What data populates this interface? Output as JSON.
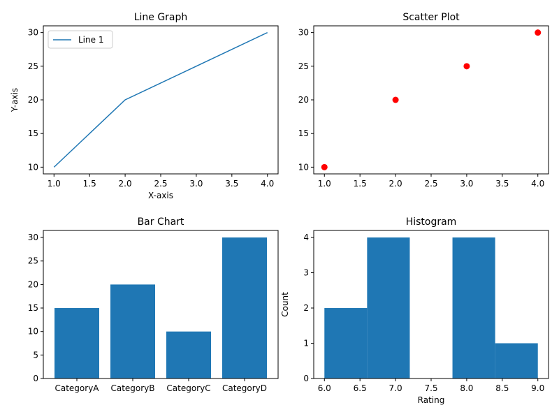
{
  "colors": {
    "default": "#1f77b4",
    "scatter": "#ff0000"
  },
  "chart_data": [
    {
      "id": "line",
      "type": "line",
      "title": "Line Graph",
      "xlabel": "X-axis",
      "ylabel": "Y-axis",
      "xlim": [
        0.85,
        4.15
      ],
      "ylim": [
        9,
        31
      ],
      "xticks": [
        "1.0",
        "1.5",
        "2.0",
        "2.5",
        "3.0",
        "3.5",
        "4.0"
      ],
      "xtick_values": [
        1.0,
        1.5,
        2.0,
        2.5,
        3.0,
        3.5,
        4.0
      ],
      "yticks": [
        "10",
        "15",
        "20",
        "25",
        "30"
      ],
      "ytick_values": [
        10,
        15,
        20,
        25,
        30
      ],
      "series": [
        {
          "name": "Line 1",
          "x": [
            1,
            2,
            3,
            4
          ],
          "y": [
            10,
            20,
            25,
            30
          ]
        }
      ],
      "legend": "upper-left",
      "grid": false
    },
    {
      "id": "scatter",
      "type": "scatter",
      "title": "Scatter Plot",
      "xlabel": "",
      "ylabel": "",
      "xlim": [
        0.85,
        4.15
      ],
      "ylim": [
        9,
        31
      ],
      "xticks": [
        "1.0",
        "1.5",
        "2.0",
        "2.5",
        "3.0",
        "3.5",
        "4.0"
      ],
      "xtick_values": [
        1.0,
        1.5,
        2.0,
        2.5,
        3.0,
        3.5,
        4.0
      ],
      "yticks": [
        "10",
        "15",
        "20",
        "25",
        "30"
      ],
      "ytick_values": [
        10,
        15,
        20,
        25,
        30
      ],
      "series": [
        {
          "x": [
            1,
            2,
            3,
            4
          ],
          "y": [
            10,
            20,
            25,
            30
          ]
        }
      ],
      "grid": false
    },
    {
      "id": "bar",
      "type": "bar",
      "title": "Bar Chart",
      "xlabel": "",
      "ylabel": "",
      "categories": [
        "CategoryA",
        "CategoryB",
        "CategoryC",
        "CategoryD"
      ],
      "values": [
        15,
        20,
        10,
        30
      ],
      "ylim": [
        0,
        31.5
      ],
      "yticks": [
        "0",
        "5",
        "10",
        "15",
        "20",
        "25",
        "30"
      ],
      "ytick_values": [
        0,
        5,
        10,
        15,
        20,
        25,
        30
      ],
      "grid": false
    },
    {
      "id": "hist",
      "type": "bar",
      "title": "Histogram",
      "xlabel": "Rating",
      "ylabel": "Count",
      "bin_edges": [
        6.0,
        6.6,
        7.2,
        7.8,
        8.4,
        9.0
      ],
      "counts": [
        2,
        4,
        0,
        4,
        1
      ],
      "xlim": [
        5.85,
        9.15
      ],
      "ylim": [
        0,
        4.2
      ],
      "xticks": [
        "6.0",
        "6.5",
        "7.0",
        "7.5",
        "8.0",
        "8.5",
        "9.0"
      ],
      "xtick_values": [
        6.0,
        6.5,
        7.0,
        7.5,
        8.0,
        8.5,
        9.0
      ],
      "yticks": [
        "0",
        "1",
        "2",
        "3",
        "4"
      ],
      "ytick_values": [
        0,
        1,
        2,
        3,
        4
      ],
      "grid": false
    }
  ]
}
